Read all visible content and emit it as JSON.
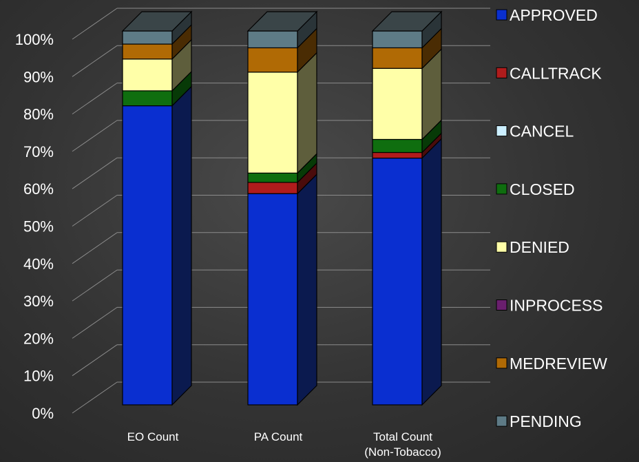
{
  "chart_data": {
    "type": "bar",
    "stacked": true,
    "percent": true,
    "three_d": true,
    "title": "",
    "xlabel": "",
    "ylabel": "",
    "ylim": [
      0,
      100
    ],
    "yticks": [
      "0%",
      "10%",
      "20%",
      "30%",
      "40%",
      "50%",
      "60%",
      "70%",
      "80%",
      "90%",
      "100%"
    ],
    "grid": true,
    "legend_position": "right",
    "categories": [
      [
        "EO Count"
      ],
      [
        "PA Count"
      ],
      [
        "Total Count",
        "(Non-Tobacco)"
      ]
    ],
    "series": [
      {
        "name": "APPROVED",
        "color": "#0a2fd0",
        "side": "#0b1a4f",
        "values": [
          80.0,
          56.5,
          66.0
        ]
      },
      {
        "name": "CALLTRACK",
        "color": "#b01c1c",
        "side": "#4a0c0c",
        "values": [
          0.0,
          3.0,
          1.5
        ]
      },
      {
        "name": "CANCEL",
        "color": "#ccefff",
        "side": "#5f7580",
        "values": [
          0.0,
          0.0,
          0.0
        ]
      },
      {
        "name": "CLOSED",
        "color": "#0f6e0f",
        "side": "#073a07",
        "values": [
          4.0,
          2.5,
          3.5
        ]
      },
      {
        "name": "DENIED",
        "color": "#ffffa8",
        "side": "#5e5e3c",
        "values": [
          8.5,
          27.0,
          19.0
        ]
      },
      {
        "name": "INPROCESS",
        "color": "#6a1f6e",
        "side": "#2e0d30",
        "values": [
          0.0,
          0.0,
          0.0
        ]
      },
      {
        "name": "MEDREVIEW",
        "color": "#b06a05",
        "side": "#4a2c03",
        "values": [
          4.0,
          6.5,
          5.5
        ]
      },
      {
        "name": "PENDING",
        "color": "#5e7b86",
        "side": "#2a3438",
        "values": [
          3.5,
          4.5,
          4.5
        ]
      }
    ]
  }
}
